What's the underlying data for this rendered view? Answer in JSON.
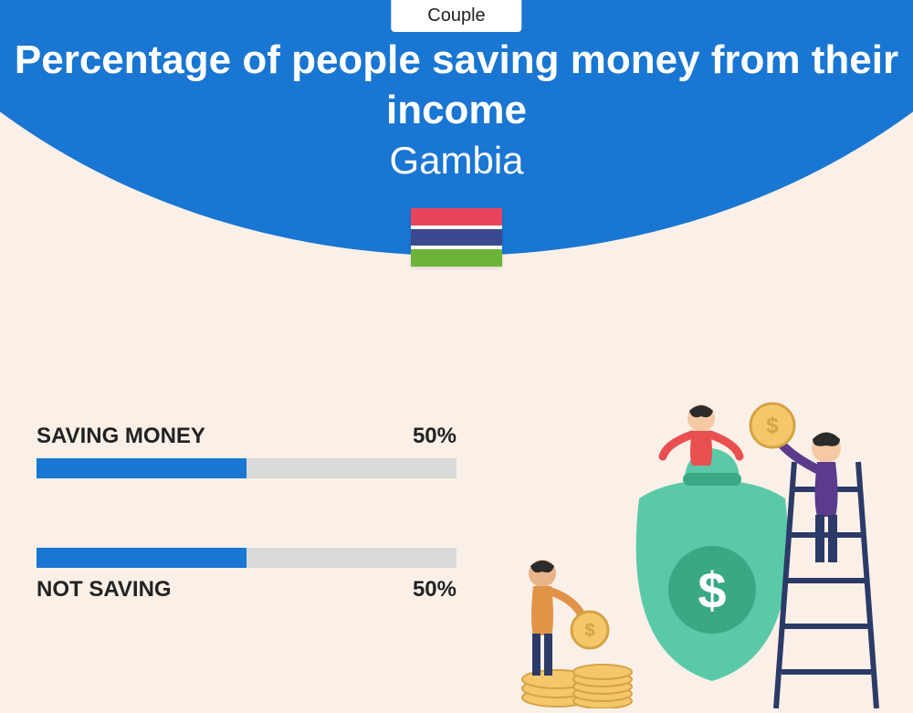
{
  "badge": "Couple",
  "title": "Percentage of people saving money from their income",
  "subtitle": "Gambia",
  "flag": {
    "stripes": [
      {
        "color": "#e8445b",
        "type": "main"
      },
      {
        "color": "#ffffff",
        "type": "thin"
      },
      {
        "color": "#3b4a8f",
        "type": "main"
      },
      {
        "color": "#ffffff",
        "type": "thin"
      },
      {
        "color": "#6bb437",
        "type": "main"
      }
    ]
  },
  "bars": [
    {
      "label": "SAVING MONEY",
      "value": 50,
      "value_text": "50%",
      "label_position": "above"
    },
    {
      "label": "NOT SAVING",
      "value": 50,
      "value_text": "50%",
      "label_position": "below"
    }
  ],
  "colors": {
    "primary": "#1976d2",
    "track": "#d9d9d9",
    "background": "#faf0e8",
    "text": "#222222"
  },
  "illustration": {
    "bag_color": "#5ac9a8",
    "bag_shadow": "#3aa885",
    "coin_fill": "#f5c76b",
    "coin_stroke": "#d4a344",
    "ladder": "#2b3a67",
    "person1": {
      "shirt": "#e94f4f",
      "pants": "#2b3a67",
      "skin": "#f5c9a3",
      "hair": "#2b2b2b"
    },
    "person2": {
      "shirt": "#5b3b8c",
      "pants": "#2b3a67",
      "skin": "#f5c9a3",
      "hair": "#2b2b2b"
    },
    "person3": {
      "shirt": "#e39348",
      "pants": "#2b3a67",
      "skin": "#e8b48a",
      "hair": "#2b2b2b"
    }
  }
}
